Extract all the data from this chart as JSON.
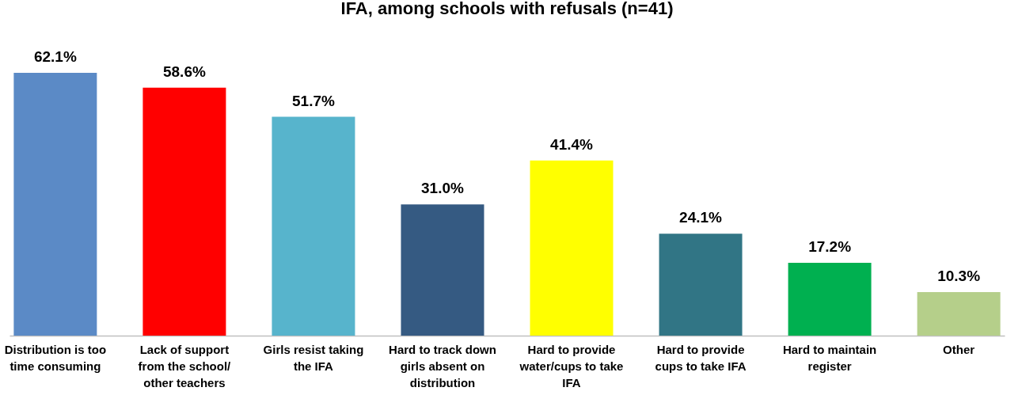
{
  "chart_data": {
    "type": "bar",
    "title": "IFA, among schools with refusals (n=41)",
    "categories": [
      "Distribution is too time consuming",
      "Lack of support from the school/ other teachers",
      "Girls resist taking the IFA",
      "Hard to track down girls absent on distribution",
      "Hard to provide water/cups to take IFA",
      "Hard to provide cups to take IFA",
      "Hard to maintain register",
      "Other"
    ],
    "values": [
      62.1,
      58.6,
      51.7,
      31.0,
      41.4,
      24.1,
      17.2,
      10.3
    ],
    "colors": [
      "#5b8ac6",
      "#ff0000",
      "#57b4cc",
      "#355a82",
      "#ffff00",
      "#317585",
      "#00b050",
      "#b5cf8a"
    ],
    "value_labels": [
      "62.1%",
      "58.6%",
      "51.7%",
      "31.0%",
      "41.4%",
      "24.1%",
      "17.2%",
      "10.3%"
    ],
    "grid": false
  }
}
